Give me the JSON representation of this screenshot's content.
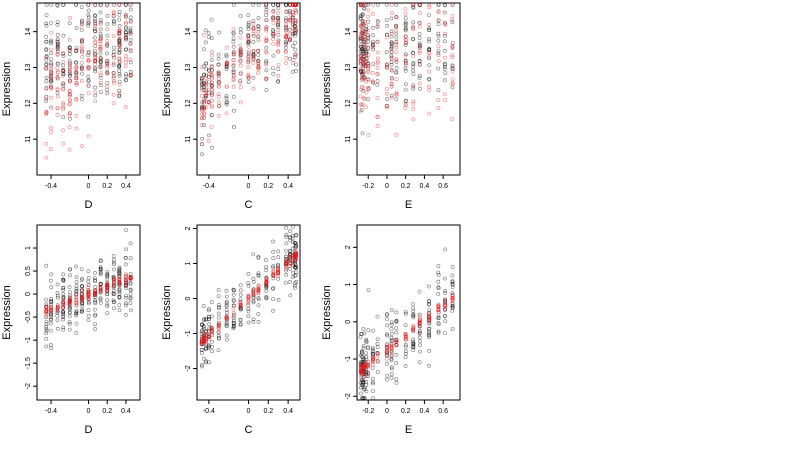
{
  "chart_data": [
    {
      "id": "top-left",
      "type": "scatter",
      "xlabel": "D",
      "ylabel": "Expression",
      "xlim": [
        -0.55,
        0.55
      ],
      "ylim": [
        10.0,
        14.8
      ],
      "xticks": [
        -0.4,
        0.0,
        0.2,
        0.4
      ],
      "yticks": [
        11,
        12,
        13,
        14
      ],
      "x_levels": [
        -0.45,
        -0.4,
        -0.33,
        -0.27,
        -0.2,
        -0.13,
        -0.07,
        0.0,
        0.07,
        0.13,
        0.2,
        0.27,
        0.33,
        0.4,
        0.45
      ],
      "series": [
        {
          "color": "#000000",
          "relation": "flat",
          "center": 13.5,
          "spread": 0.75,
          "slope": 0.5,
          "count": 260
        },
        {
          "color": "#e41a1c",
          "relation": "linear",
          "center": 13.0,
          "spread": 0.8,
          "slope": 1.6,
          "count": 200
        }
      ]
    },
    {
      "id": "top-middle",
      "type": "scatter",
      "xlabel": "C",
      "ylabel": "Expression",
      "xlim": [
        -0.52,
        0.52
      ],
      "ylim": [
        10.0,
        14.8
      ],
      "xticks": [
        -0.4,
        0.0,
        0.2,
        0.4
      ],
      "yticks": [
        11,
        12,
        13,
        14
      ],
      "x_levels": [
        -0.47,
        -0.45,
        -0.43,
        -0.4,
        -0.37,
        -0.3,
        -0.22,
        -0.15,
        -0.08,
        0.0,
        0.05,
        0.1,
        0.18,
        0.25,
        0.3,
        0.38,
        0.42,
        0.45,
        0.47,
        0.48
      ],
      "series": [
        {
          "color": "#000000",
          "relation": "linear",
          "center": 13.4,
          "spread": 0.7,
          "slope": 2.0,
          "count": 260
        },
        {
          "color": "#e41a1c",
          "relation": "linear",
          "center": 13.3,
          "spread": 0.5,
          "slope": 2.4,
          "count": 220
        }
      ]
    },
    {
      "id": "top-right",
      "type": "scatter",
      "xlabel": "E",
      "ylabel": "Expression",
      "xlim": [
        -0.32,
        0.78
      ],
      "ylim": [
        10.0,
        14.8
      ],
      "xticks": [
        -0.2,
        0.0,
        0.2,
        0.4,
        0.6
      ],
      "yticks": [
        11,
        12,
        13,
        14
      ],
      "x_levels": [
        -0.28,
        -0.27,
        -0.26,
        -0.25,
        -0.24,
        -0.22,
        -0.2,
        -0.15,
        -0.1,
        0.0,
        0.05,
        0.1,
        0.2,
        0.28,
        0.35,
        0.45,
        0.55,
        0.62,
        0.7
      ],
      "series": [
        {
          "color": "#000000",
          "relation": "flat",
          "center": 13.6,
          "spread": 0.7,
          "slope": 0.0,
          "count": 240
        },
        {
          "color": "#e41a1c",
          "relation": "flat",
          "center": 13.3,
          "spread": 0.9,
          "slope": 0.0,
          "count": 200
        }
      ]
    },
    {
      "id": "bottom-left",
      "type": "scatter",
      "xlabel": "D",
      "ylabel": "Expression",
      "xlim": [
        -0.55,
        0.55
      ],
      "ylim": [
        -2.3,
        1.5
      ],
      "xticks": [
        -0.4,
        0.0,
        0.2,
        0.4
      ],
      "yticks": [
        -2.0,
        -1.5,
        -1.0,
        -0.5,
        0.0,
        0.5,
        1.0
      ],
      "x_levels": [
        -0.45,
        -0.4,
        -0.33,
        -0.27,
        -0.2,
        -0.13,
        -0.07,
        0.0,
        0.07,
        0.13,
        0.2,
        0.27,
        0.33,
        0.4,
        0.45
      ],
      "series": [
        {
          "color": "#000000",
          "relation": "linear",
          "center": 0.0,
          "spread": 0.35,
          "slope": 0.9,
          "count": 280
        },
        {
          "color": "#e41a1c",
          "relation": "linear",
          "center": 0.0,
          "spread": 0.06,
          "slope": 0.8,
          "count": 150
        }
      ]
    },
    {
      "id": "bottom-middle",
      "type": "scatter",
      "xlabel": "C",
      "ylabel": "Expression",
      "xlim": [
        -0.52,
        0.52
      ],
      "ylim": [
        -2.9,
        2.1
      ],
      "xticks": [
        -0.4,
        0.0,
        0.2,
        0.4
      ],
      "yticks": [
        -2,
        -1,
        0,
        1,
        2
      ],
      "x_levels": [
        -0.47,
        -0.45,
        -0.43,
        -0.4,
        -0.37,
        -0.3,
        -0.22,
        -0.15,
        -0.08,
        0.0,
        0.05,
        0.1,
        0.18,
        0.25,
        0.3,
        0.38,
        0.42,
        0.45,
        0.47,
        0.48
      ],
      "series": [
        {
          "color": "#000000",
          "relation": "linear",
          "center": 0.0,
          "spread": 0.45,
          "slope": 2.6,
          "count": 280
        },
        {
          "color": "#e41a1c",
          "relation": "linear",
          "center": 0.0,
          "spread": 0.07,
          "slope": 2.6,
          "count": 160
        }
      ]
    },
    {
      "id": "bottom-right",
      "type": "scatter",
      "xlabel": "E",
      "ylabel": "Expression",
      "xlim": [
        -0.32,
        0.78
      ],
      "ylim": [
        -2.1,
        2.6
      ],
      "xticks": [
        -0.2,
        0.0,
        0.2,
        0.4,
        0.6
      ],
      "yticks": [
        -2,
        -1,
        0,
        1,
        2
      ],
      "x_levels": [
        -0.28,
        -0.27,
        -0.26,
        -0.25,
        -0.24,
        -0.22,
        -0.2,
        -0.15,
        -0.1,
        0.0,
        0.05,
        0.1,
        0.2,
        0.28,
        0.35,
        0.45,
        0.55,
        0.62,
        0.7
      ],
      "series": [
        {
          "color": "#000000",
          "relation": "linear",
          "center": -0.3,
          "spread": 0.5,
          "slope": 2.0,
          "count": 260
        },
        {
          "color": "#e41a1c",
          "relation": "linear",
          "center": -0.3,
          "spread": 0.08,
          "slope": 2.0,
          "count": 150
        }
      ]
    }
  ]
}
